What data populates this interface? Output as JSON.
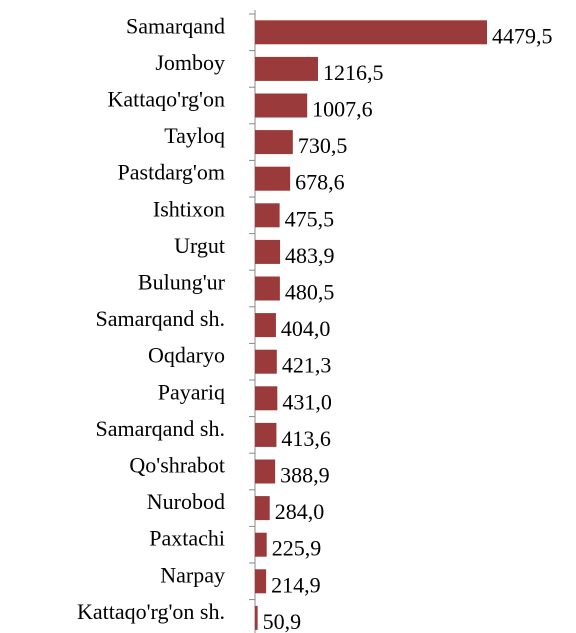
{
  "chart_data": {
    "type": "bar",
    "orientation": "horizontal",
    "color": "#9b3a3a",
    "categories": [
      "Samarqand",
      "Jomboy",
      "Kattaqo'rg'on",
      "Tayloq",
      "Pastdarg'om",
      "Ishtixon",
      "Urgut",
      "Bulung'ur",
      "Samarqand sh.",
      "Oqdaryo",
      "Payariq",
      "Samarqand sh.",
      "Qo'shrabot",
      "Nurobod",
      "Paxtachi",
      "Narpay",
      "Kattaqo'rg'on sh."
    ],
    "values": [
      4479.5,
      1216.5,
      1007.6,
      730.5,
      678.6,
      475.5,
      483.9,
      480.5,
      404.0,
      421.3,
      431.0,
      413.6,
      388.9,
      284.0,
      225.9,
      214.9,
      50.9
    ],
    "value_labels": [
      "4479,5",
      "1216,5",
      "1007,6",
      "730,5",
      "678,6",
      "475,5",
      "483,9",
      "480,5",
      "404,0",
      "421,3",
      "431,0",
      "413,6",
      "388,9",
      "284,0",
      "225,9",
      "214,9",
      "50,9"
    ]
  }
}
